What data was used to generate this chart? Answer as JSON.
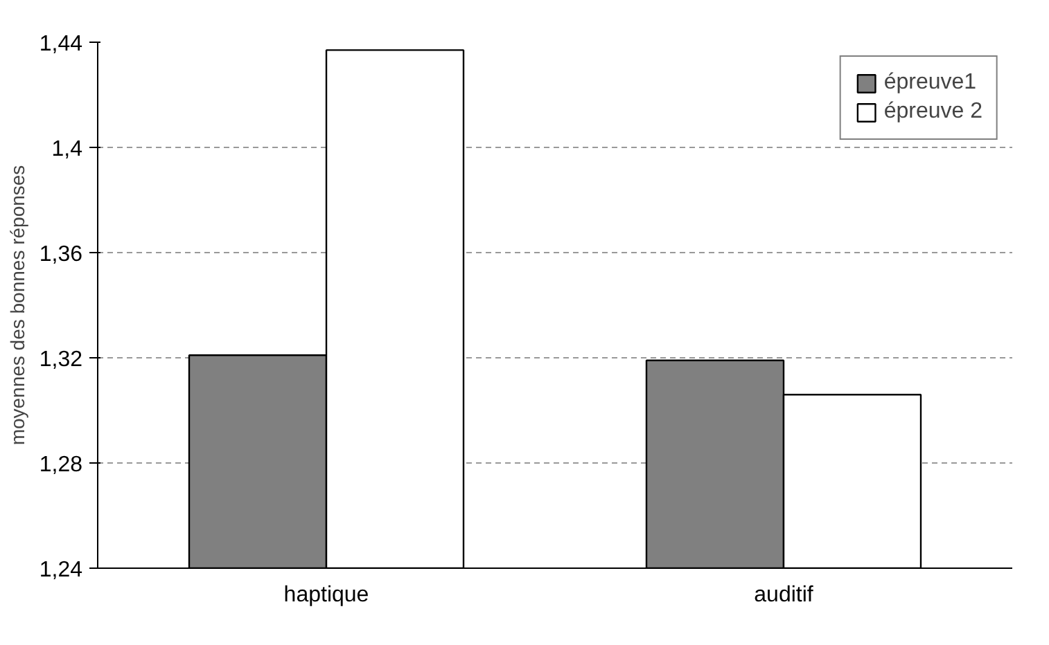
{
  "chart_data": {
    "type": "bar",
    "ylabel": "moyennes des bonnes réponses",
    "categories": [
      "haptique",
      "auditif"
    ],
    "series": [
      {
        "name": "épreuve1",
        "color": "#808080",
        "values": [
          1.321,
          1.319
        ]
      },
      {
        "name": "épreuve 2",
        "color": "#ffffff",
        "values": [
          1.437,
          1.306
        ]
      }
    ],
    "ylim": [
      1.24,
      1.44
    ],
    "yticks": [
      {
        "value": 1.24,
        "label": "1,24"
      },
      {
        "value": 1.28,
        "label": "1,28"
      },
      {
        "value": 1.32,
        "label": "1,32"
      },
      {
        "value": 1.36,
        "label": "1,36"
      },
      {
        "value": 1.4,
        "label": "1,4"
      },
      {
        "value": 1.44,
        "label": "1,44"
      }
    ],
    "grid": "y",
    "legend": "top right"
  }
}
